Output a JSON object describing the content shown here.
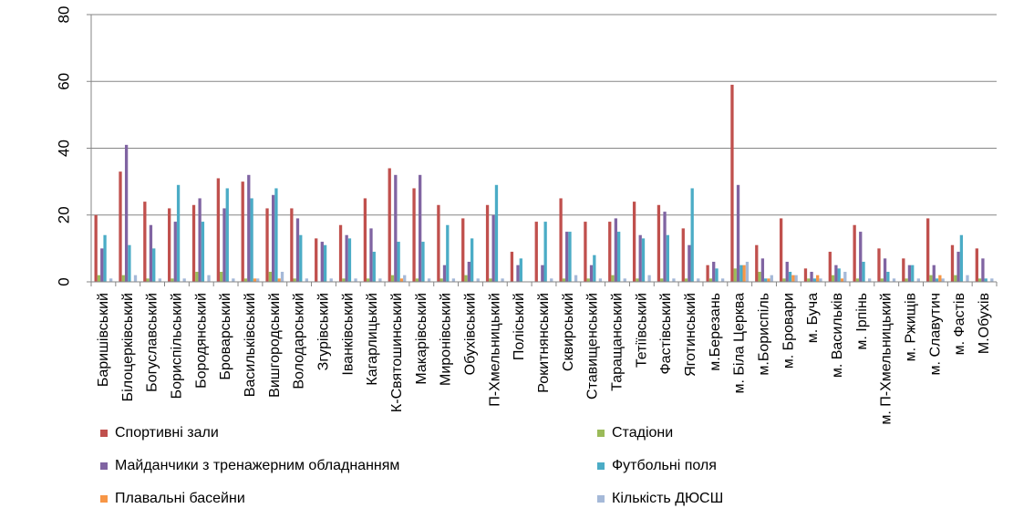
{
  "chart_data": {
    "type": "bar",
    "ylim": [
      0,
      80
    ],
    "yticks": [
      0,
      20,
      40,
      60,
      80
    ],
    "title": "",
    "xlabel": "",
    "ylabel": "",
    "legend_position": "bottom",
    "categories": [
      "Баришівський",
      "Білоцерківський",
      "Богуславський",
      "Бориспільський",
      "Бородянський",
      "Броварський",
      "Васильківський",
      "Вишгородський",
      "Володарський",
      "Згурівський",
      "Іванківський",
      "Кагарлицький",
      "К-Святошинський",
      "Макарівський",
      "Миронівський",
      "Обухівський",
      "П-Хмельницький",
      "Поліський",
      "Рокитнянський",
      "Сквирський",
      "Ставищенський",
      "Таращанський",
      "Тетіївський",
      "Фастівський",
      "Яготинський",
      "м.Березань",
      "м. Біла Церква",
      "м.Бориспіль",
      "м. Бровари",
      "м. Буча",
      "м. Васильків",
      "м. Ірпінь",
      "м. П-Хмельницький",
      "м. Ржищів",
      "м. Славутич",
      "м. Фастів",
      "М.Обухів"
    ],
    "series": [
      {
        "name": "Спортивні зали",
        "color": "#c0504d",
        "values": [
          20,
          33,
          24,
          22,
          23,
          31,
          30,
          22,
          22,
          13,
          17,
          25,
          34,
          28,
          23,
          19,
          23,
          9,
          18,
          25,
          18,
          18,
          24,
          23,
          16,
          5,
          59,
          11,
          19,
          4,
          9,
          17,
          10,
          7,
          19,
          11,
          10
        ]
      },
      {
        "name": "Стадіони",
        "color": "#9bbb59",
        "values": [
          2,
          2,
          1,
          1,
          3,
          3,
          1,
          3,
          1,
          0,
          1,
          1,
          2,
          1,
          1,
          2,
          1,
          0,
          0,
          1,
          1,
          2,
          1,
          1,
          1,
          1,
          4,
          3,
          1,
          1,
          2,
          1,
          1,
          1,
          2,
          2,
          1
        ]
      },
      {
        "name": "Майданчики з тренажерним обладнанням",
        "color": "#8064a2",
        "values": [
          10,
          41,
          17,
          18,
          25,
          22,
          32,
          26,
          19,
          12,
          14,
          16,
          32,
          32,
          5,
          6,
          20,
          5,
          5,
          15,
          5,
          19,
          14,
          21,
          11,
          6,
          29,
          7,
          6,
          3,
          5,
          15,
          7,
          5,
          5,
          9,
          7
        ]
      },
      {
        "name": "Футбольні поля",
        "color": "#4bacc6",
        "values": [
          14,
          11,
          10,
          29,
          18,
          28,
          25,
          28,
          14,
          11,
          13,
          9,
          12,
          12,
          17,
          13,
          29,
          7,
          18,
          15,
          8,
          15,
          13,
          14,
          28,
          4,
          5,
          1,
          3,
          1,
          4,
          6,
          3,
          5,
          1,
          14,
          1
        ]
      },
      {
        "name": "Плавальні басейни",
        "color": "#f79646",
        "values": [
          0,
          0,
          0,
          0,
          0,
          0,
          1,
          1,
          0,
          0,
          0,
          0,
          1,
          0,
          0,
          0,
          0,
          0,
          0,
          0,
          0,
          0,
          0,
          0,
          0,
          0,
          5,
          1,
          2,
          2,
          1,
          0,
          0,
          0,
          2,
          0,
          0
        ]
      },
      {
        "name": "Кількість ДЮСШ",
        "color": "#a5b9d8",
        "values": [
          1,
          2,
          1,
          1,
          2,
          1,
          1,
          3,
          1,
          1,
          1,
          1,
          2,
          1,
          1,
          1,
          1,
          0,
          1,
          2,
          1,
          1,
          2,
          1,
          1,
          1,
          6,
          2,
          2,
          1,
          3,
          1,
          1,
          1,
          1,
          2,
          1
        ]
      }
    ]
  }
}
